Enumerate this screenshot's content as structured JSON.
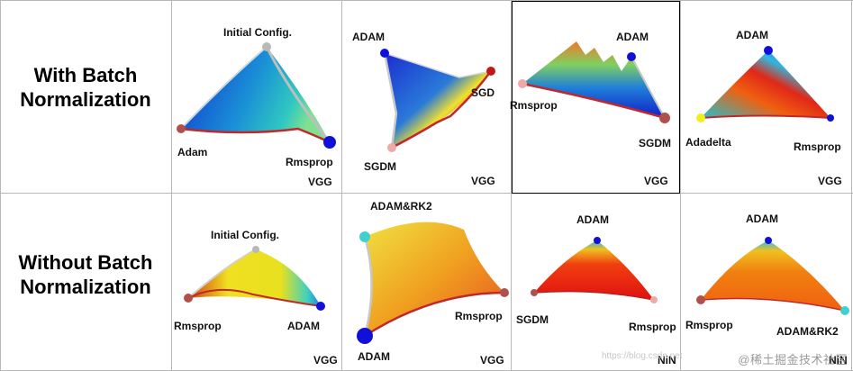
{
  "rows": [
    {
      "label_line1": "With Batch",
      "label_line2": "Normalization"
    },
    {
      "label_line1": "Without Batch",
      "label_line2": "Normalization"
    }
  ],
  "panels": [
    {
      "network": "VGG",
      "labels": [
        "Initial Config.",
        "Adam",
        "Rmsprop"
      ]
    },
    {
      "network": "VGG",
      "labels": [
        "ADAM",
        "SGD",
        "SGDM"
      ]
    },
    {
      "network": "VGG",
      "labels": [
        "ADAM",
        "Rmsprop",
        "SGDM"
      ]
    },
    {
      "network": "VGG",
      "labels": [
        "ADAM",
        "Adadelta",
        "Rmsprop"
      ]
    },
    {
      "network": "VGG",
      "labels": [
        "Initial Config.",
        "Rmsprop",
        "ADAM"
      ]
    },
    {
      "network": "VGG",
      "labels": [
        "ADAM&RK2",
        "Rmsprop",
        "ADAM"
      ]
    },
    {
      "network": "NiN",
      "labels": [
        "ADAM",
        "SGDM",
        "Rmsprop"
      ]
    },
    {
      "network": "NiN",
      "labels": [
        "ADAM",
        "Rmsprop",
        "ADAM&RK2"
      ]
    }
  ],
  "colors": {
    "boundary_red": "#c0282b",
    "boundary_gray": "#bfbfbf",
    "point_brown": "#b0504c",
    "point_blue": "#1010d8",
    "point_pink": "#f0a8a8",
    "point_cyan": "#40d0d0",
    "point_yellow": "#f0f020",
    "point_gray": "#b8b8b8"
  },
  "watermark": "@稀土掘金技术社区",
  "url_text": "https://blog.csdn.net"
}
